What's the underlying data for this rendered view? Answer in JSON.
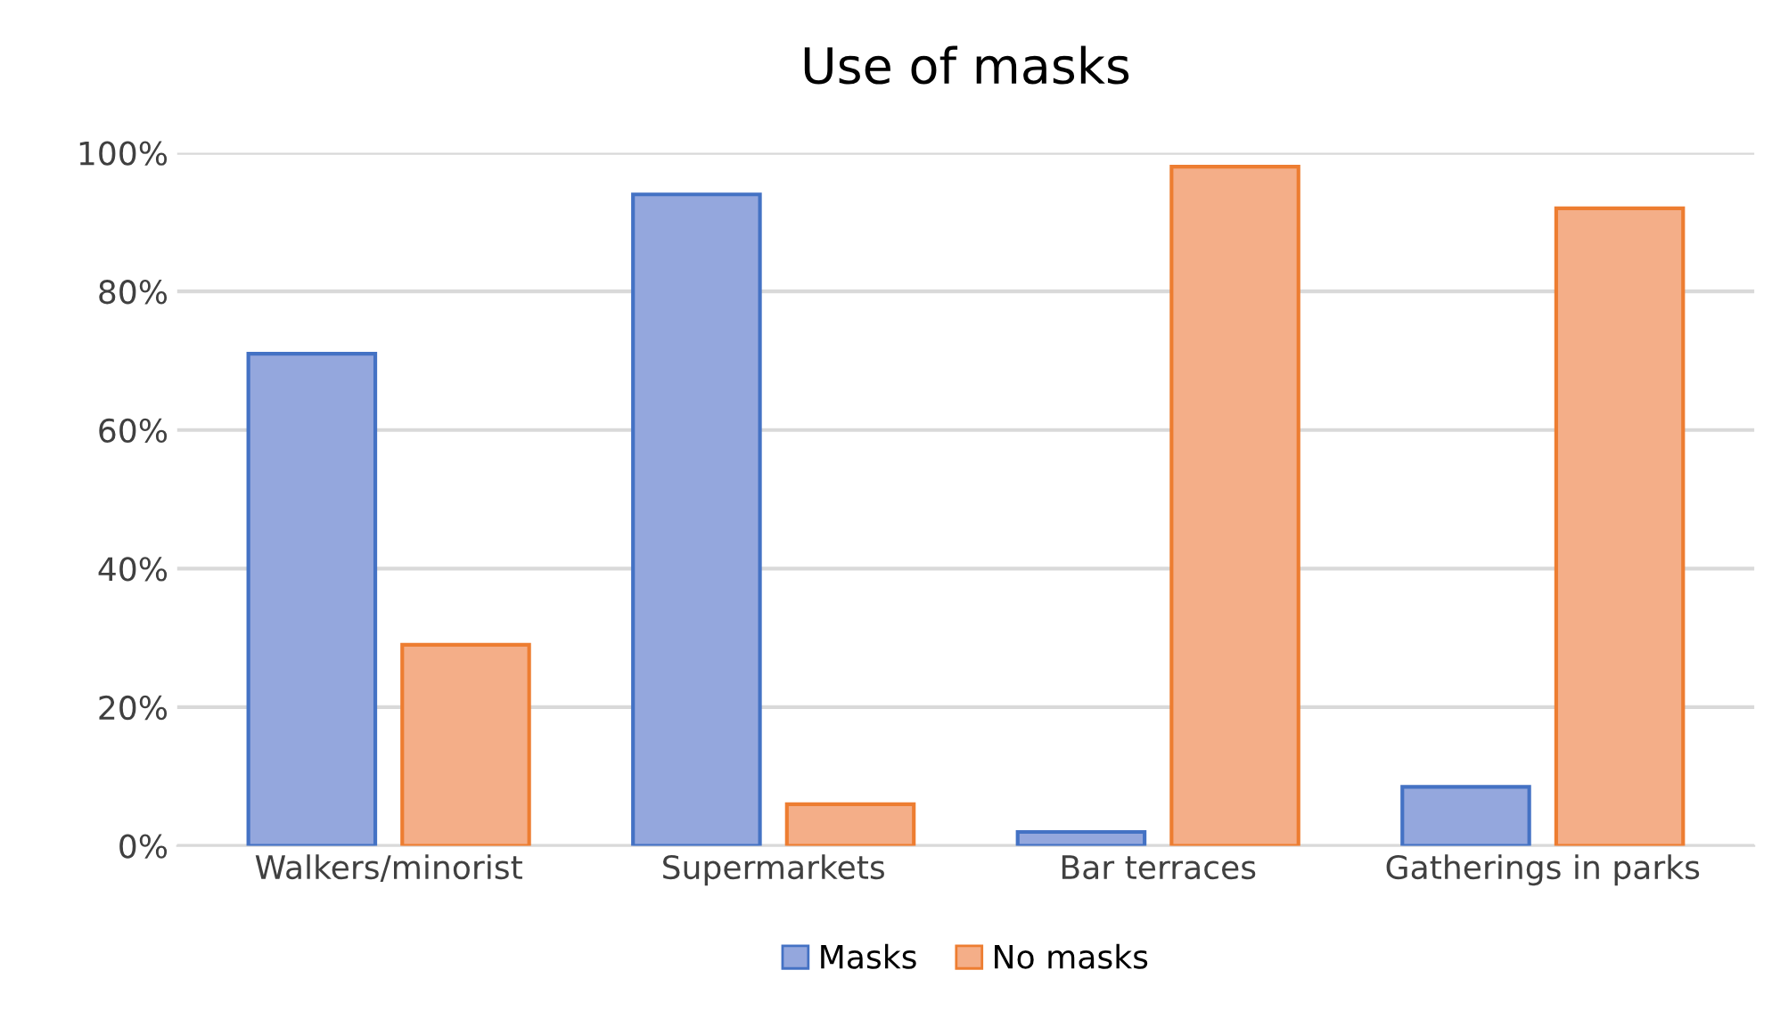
{
  "chart_data": {
    "type": "bar",
    "title": "Use of masks",
    "categories": [
      "Walkers/minorist",
      "Supermarkets",
      "Bar terraces",
      "Gatherings in parks"
    ],
    "series": [
      {
        "name": "Masks",
        "color": "#94a7dd",
        "values": [
          71,
          94,
          2,
          8.5
        ]
      },
      {
        "name": "No masks",
        "color": "#f4ae88",
        "values": [
          29,
          6,
          98,
          92
        ]
      }
    ],
    "ylim": [
      0,
      100
    ],
    "yticks": [
      {
        "value": 0,
        "label": "0%"
      },
      {
        "value": 20,
        "label": "20%"
      },
      {
        "value": 40,
        "label": "40%"
      },
      {
        "value": 60,
        "label": "60%"
      },
      {
        "value": 80,
        "label": "80%"
      },
      {
        "value": 100,
        "label": "100%"
      }
    ],
    "grid": "y",
    "legend": "bottom"
  }
}
